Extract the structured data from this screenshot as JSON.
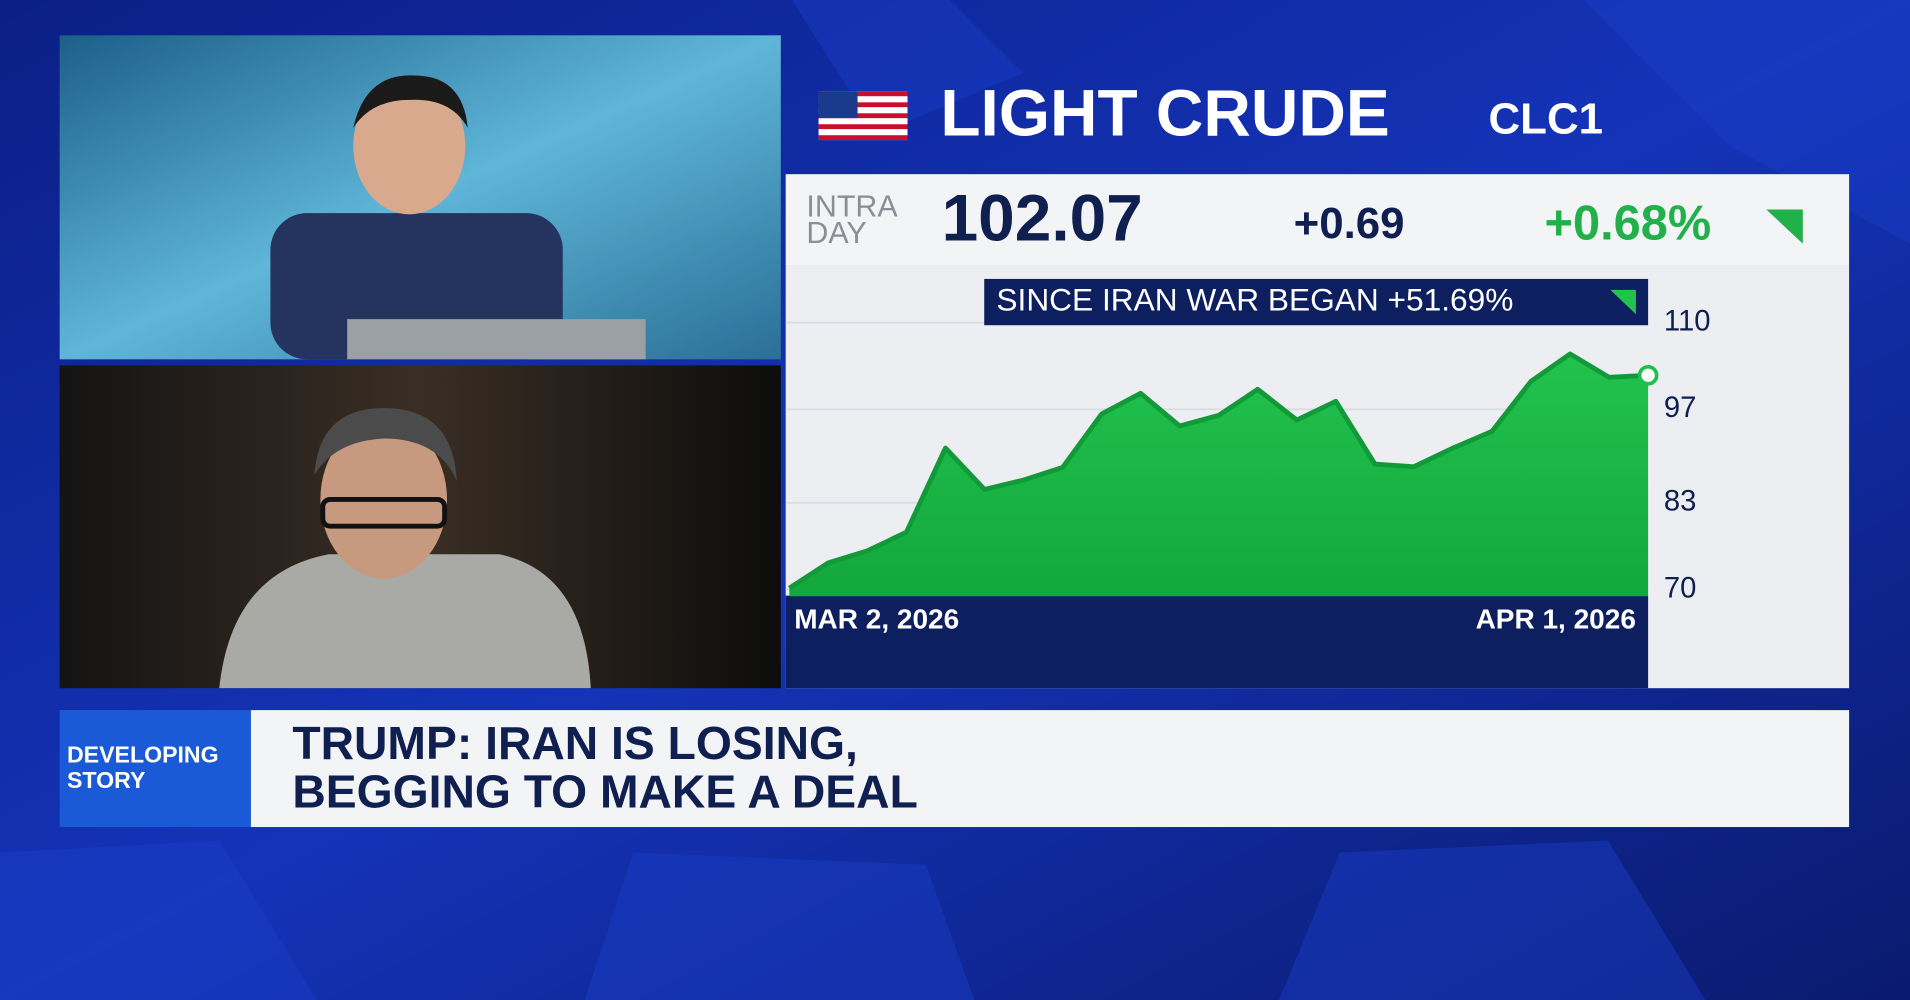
{
  "header": {
    "title": "LIGHT CRUDE",
    "symbol": "CLC1"
  },
  "quote": {
    "label": [
      "INTRA",
      "DAY"
    ],
    "price": "102.07",
    "change": "+0.69",
    "percent_change": "+0.68%"
  },
  "chart_data": {
    "type": "area",
    "annotation": "SINCE IRAN WAR BEGAN +51.69%",
    "categories": [
      "MAR 2, 2026",
      null,
      null,
      null,
      null,
      null,
      null,
      null,
      null,
      null,
      null,
      null,
      null,
      null,
      null,
      null,
      null,
      null,
      null,
      null,
      null,
      null,
      "APR 1, 2026"
    ],
    "values": [
      70.2,
      74.0,
      75.8,
      78.6,
      91.2,
      85.0,
      86.4,
      88.3,
      96.3,
      99.4,
      94.5,
      96.1,
      100.0,
      95.4,
      98.2,
      88.8,
      88.4,
      91.2,
      93.7,
      101.2,
      105.3,
      101.8,
      102.1
    ],
    "color": "#1fbf4b",
    "ylim": [
      69,
      118
    ],
    "yticks": [
      70,
      83,
      97,
      110
    ],
    "grid": true
  },
  "lower_third": {
    "tag": [
      "DEVELOPING",
      "STORY"
    ],
    "headline": [
      "TRUMP: IRAN IS LOSING,",
      "BEGGING TO MAKE A DEAL"
    ]
  }
}
